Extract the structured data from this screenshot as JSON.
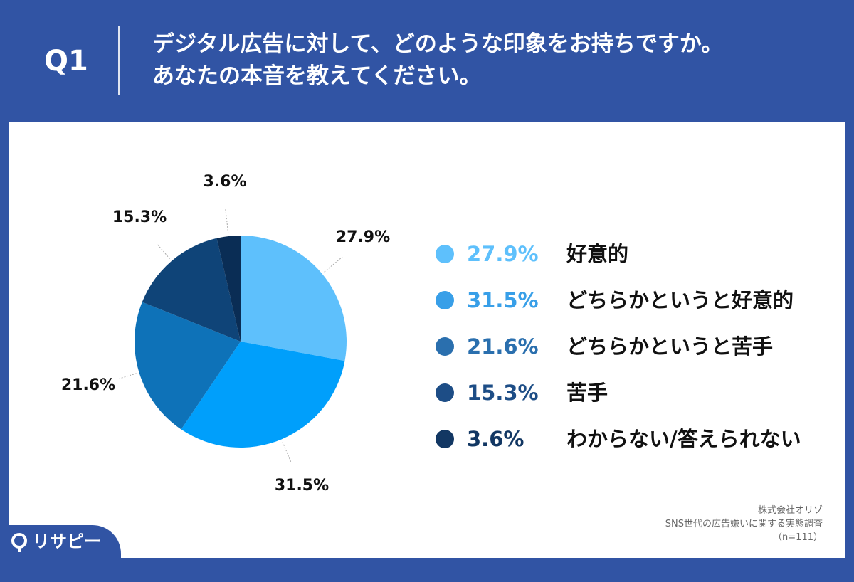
{
  "header": {
    "question": "Q1",
    "title_line1": "デジタル広告に対して、どのような印象をお持ちですか。",
    "title_line2": "あなたの本音を教えてください。"
  },
  "chart_data": {
    "type": "pie",
    "slices": [
      {
        "label": "好意的",
        "value": 27.9,
        "display": "27.9%",
        "color": "#5ec0fc"
      },
      {
        "label": "どちらかというと好意的",
        "value": 31.5,
        "display": "31.5%",
        "color": "#009ffb"
      },
      {
        "label": "どちらかというと苦手",
        "value": 21.6,
        "display": "21.6%",
        "color": "#0e72b8"
      },
      {
        "label": "苦手",
        "value": 15.3,
        "display": "15.3%",
        "color": "#0f4478"
      },
      {
        "label": "わからない/答えられない",
        "value": 3.6,
        "display": "3.6%",
        "color": "#0a2d55"
      }
    ],
    "start_angle_deg": 0,
    "direction": "clockwise"
  },
  "legend": {
    "value_colors": [
      "#5ec0fc",
      "#389fe8",
      "#2a6fae",
      "#1d4d86",
      "#123763"
    ]
  },
  "source": {
    "company": "株式会社オリゾ",
    "survey": "SNS世代の広告嫌いに関する実態調査",
    "sample": "（n=111）"
  },
  "brand": {
    "logo_text": "リサピー"
  }
}
